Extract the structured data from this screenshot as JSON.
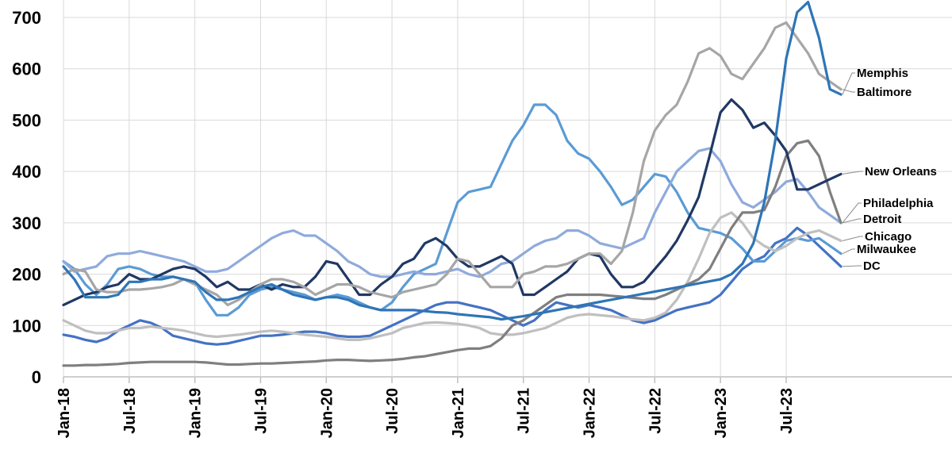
{
  "chart_data": {
    "type": "line",
    "title": "",
    "xlabel": "",
    "ylabel": "",
    "ylim": [
      0,
      700
    ],
    "y_ticks": [
      0,
      100,
      200,
      300,
      400,
      500,
      600,
      700
    ],
    "grid": true,
    "x": [
      "Jan-18",
      "Feb-18",
      "Mar-18",
      "Apr-18",
      "May-18",
      "Jun-18",
      "Jul-18",
      "Aug-18",
      "Sep-18",
      "Oct-18",
      "Nov-18",
      "Dec-18",
      "Jan-19",
      "Feb-19",
      "Mar-19",
      "Apr-19",
      "May-19",
      "Jun-19",
      "Jul-19",
      "Aug-19",
      "Sep-19",
      "Oct-19",
      "Nov-19",
      "Dec-19",
      "Jan-20",
      "Feb-20",
      "Mar-20",
      "Apr-20",
      "May-20",
      "Jun-20",
      "Jul-20",
      "Aug-20",
      "Sep-20",
      "Oct-20",
      "Nov-20",
      "Dec-20",
      "Jan-21",
      "Feb-21",
      "Mar-21",
      "Apr-21",
      "May-21",
      "Jun-21",
      "Jul-21",
      "Aug-21",
      "Sep-21",
      "Oct-21",
      "Nov-21",
      "Dec-21",
      "Jan-22",
      "Feb-22",
      "Mar-22",
      "Apr-22",
      "May-22",
      "Jun-22",
      "Jul-22",
      "Aug-22",
      "Sep-22",
      "Oct-22",
      "Nov-22",
      "Dec-22",
      "Jan-23",
      "Feb-23",
      "Mar-23",
      "Apr-23",
      "May-23",
      "Jun-23",
      "Jul-23",
      "Aug-23",
      "Sep-23",
      "Oct-23",
      "Nov-23",
      "Dec-23"
    ],
    "x_tick_labels": [
      "Jan-18",
      "Jul-18",
      "Jan-19",
      "Jul-19",
      "Jan-20",
      "Jul-20",
      "Jan-21",
      "Jul-21",
      "Jan-22",
      "Jul-22",
      "Jan-23",
      "Jul-23"
    ],
    "series": [
      {
        "name": "Memphis",
        "color": "#2e75b6",
        "values": [
          215,
          190,
          155,
          155,
          155,
          160,
          185,
          185,
          190,
          190,
          195,
          190,
          185,
          165,
          150,
          150,
          155,
          165,
          175,
          180,
          170,
          160,
          155,
          150,
          155,
          155,
          150,
          140,
          135,
          130,
          130,
          130,
          130,
          128,
          126,
          125,
          122,
          120,
          118,
          116,
          112,
          115,
          118,
          122,
          126,
          130,
          134,
          138,
          142,
          146,
          150,
          154,
          158,
          162,
          166,
          170,
          174,
          178,
          182,
          186,
          190,
          200,
          220,
          260,
          340,
          460,
          620,
          710,
          730,
          660,
          560,
          550
        ]
      },
      {
        "name": "Baltimore",
        "color": "#a6a6a6",
        "values": [
          200,
          210,
          205,
          170,
          165,
          165,
          170,
          170,
          172,
          175,
          180,
          190,
          180,
          170,
          160,
          140,
          150,
          165,
          180,
          190,
          190,
          185,
          175,
          160,
          170,
          180,
          180,
          175,
          165,
          160,
          155,
          165,
          170,
          175,
          180,
          200,
          230,
          225,
          200,
          175,
          175,
          175,
          200,
          205,
          215,
          215,
          220,
          230,
          240,
          240,
          220,
          245,
          320,
          420,
          480,
          510,
          530,
          575,
          630,
          640,
          625,
          590,
          580,
          610,
          640,
          680,
          690,
          660,
          630,
          590,
          575,
          560
        ]
      },
      {
        "name": "New Orleans",
        "color": "#203864",
        "values": [
          140,
          150,
          160,
          165,
          175,
          180,
          200,
          190,
          190,
          200,
          210,
          215,
          210,
          195,
          175,
          185,
          170,
          170,
          180,
          170,
          180,
          175,
          175,
          195,
          225,
          220,
          190,
          160,
          160,
          180,
          195,
          220,
          230,
          260,
          270,
          255,
          230,
          215,
          215,
          225,
          235,
          220,
          160,
          160,
          175,
          190,
          205,
          230,
          240,
          235,
          200,
          175,
          175,
          185,
          210,
          235,
          265,
          305,
          350,
          430,
          515,
          540,
          520,
          485,
          495,
          470,
          440,
          365,
          365,
          375,
          385,
          395
        ]
      },
      {
        "name": "Philadelphia",
        "color": "#7f7f7f",
        "values": [
          22,
          22,
          23,
          23,
          24,
          25,
          27,
          28,
          29,
          29,
          29,
          29,
          29,
          28,
          26,
          24,
          24,
          25,
          26,
          26,
          27,
          28,
          29,
          30,
          32,
          33,
          33,
          32,
          31,
          32,
          33,
          35,
          38,
          40,
          44,
          48,
          52,
          55,
          55,
          60,
          75,
          100,
          110,
          125,
          140,
          155,
          160,
          160,
          160,
          160,
          158,
          156,
          154,
          152,
          152,
          160,
          170,
          180,
          190,
          210,
          250,
          290,
          320,
          320,
          325,
          370,
          430,
          455,
          460,
          430,
          360,
          300
        ]
      },
      {
        "name": "Detroit",
        "color": "#8faadc",
        "values": [
          225,
          205,
          210,
          215,
          235,
          240,
          240,
          245,
          240,
          235,
          230,
          225,
          215,
          205,
          205,
          210,
          225,
          240,
          255,
          270,
          280,
          285,
          275,
          275,
          260,
          245,
          225,
          215,
          200,
          195,
          195,
          200,
          205,
          200,
          200,
          205,
          210,
          200,
          195,
          205,
          220,
          225,
          240,
          255,
          265,
          270,
          285,
          285,
          275,
          260,
          255,
          250,
          260,
          270,
          320,
          360,
          400,
          420,
          440,
          445,
          420,
          375,
          340,
          330,
          345,
          360,
          380,
          385,
          360,
          330,
          315,
          300
        ]
      },
      {
        "name": "Chicago",
        "color": "#bfbfbf",
        "values": [
          110,
          100,
          90,
          85,
          85,
          90,
          95,
          95,
          98,
          95,
          93,
          90,
          85,
          80,
          78,
          80,
          82,
          85,
          88,
          90,
          88,
          85,
          82,
          80,
          78,
          75,
          72,
          72,
          75,
          80,
          85,
          95,
          100,
          105,
          106,
          105,
          103,
          100,
          95,
          85,
          82,
          82,
          85,
          90,
          95,
          105,
          115,
          120,
          122,
          120,
          118,
          115,
          112,
          110,
          115,
          125,
          150,
          185,
          230,
          280,
          310,
          320,
          300,
          270,
          255,
          245,
          255,
          270,
          280,
          285,
          275,
          265
        ]
      },
      {
        "name": "Milwaukee",
        "color": "#5b9bd5",
        "values": [
          225,
          210,
          180,
          160,
          180,
          210,
          215,
          210,
          200,
          195,
          195,
          190,
          185,
          150,
          120,
          120,
          135,
          160,
          170,
          175,
          170,
          165,
          160,
          150,
          155,
          160,
          155,
          145,
          135,
          130,
          145,
          175,
          200,
          210,
          220,
          280,
          340,
          360,
          365,
          370,
          415,
          460,
          490,
          530,
          530,
          510,
          460,
          435,
          425,
          400,
          370,
          335,
          345,
          370,
          395,
          390,
          360,
          320,
          290,
          285,
          280,
          270,
          250,
          225,
          225,
          245,
          265,
          270,
          265,
          270,
          255,
          240
        ]
      },
      {
        "name": "DC",
        "color": "#4472c4",
        "values": [
          82,
          78,
          72,
          68,
          75,
          90,
          100,
          110,
          105,
          95,
          80,
          75,
          70,
          65,
          63,
          65,
          70,
          75,
          80,
          80,
          82,
          85,
          88,
          88,
          85,
          80,
          78,
          78,
          80,
          90,
          100,
          110,
          120,
          130,
          140,
          145,
          145,
          140,
          135,
          130,
          120,
          110,
          100,
          110,
          130,
          145,
          140,
          135,
          140,
          135,
          130,
          120,
          110,
          105,
          110,
          120,
          130,
          135,
          140,
          145,
          160,
          185,
          210,
          225,
          235,
          260,
          270,
          290,
          275,
          255,
          235,
          215
        ]
      }
    ],
    "legend_labels": [
      {
        "name": "Memphis",
        "text": "Memphis"
      },
      {
        "name": "Baltimore",
        "text": "Baltimore"
      },
      {
        "name": "New Orleans",
        "text": "New Orleans"
      },
      {
        "name": "Philadelphia",
        "text": "Philadelphia"
      },
      {
        "name": "Detroit",
        "text": "Detroit"
      },
      {
        "name": "Chicago",
        "text": "Chicago"
      },
      {
        "name": "Milwaukee",
        "text": "Milwaukee"
      },
      {
        "name": "DC",
        "text": "DC"
      }
    ],
    "legend_placement": "right"
  }
}
